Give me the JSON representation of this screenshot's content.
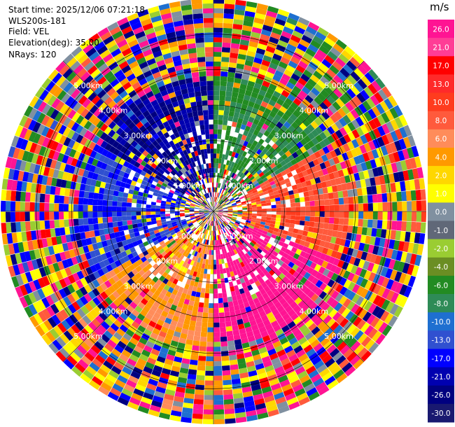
{
  "header": {
    "start_time": "Start time: 2025/12/06 07:21:18",
    "instrument": "WLS200s-181",
    "field": "Field: VEL",
    "elevation": "Elevation(deg): 35.00",
    "nrays": "NRays: 120"
  },
  "chart_data": {
    "type": "heatmap",
    "projection": "polar (PPI)",
    "field": "VEL",
    "units": "m/s",
    "elevation_deg": 35.0,
    "n_rays": 120,
    "max_range_km": 6.0,
    "range_rings_km": [
      1.0,
      2.0,
      3.0,
      4.0,
      5.0
    ],
    "range_ring_labels": [
      "1.00km",
      "2.00km",
      "3.00km",
      "4.00km",
      "5.00km"
    ],
    "colorbar": {
      "label": "m/s",
      "ticks": [
        "26.0",
        "21.0",
        "17.0",
        "13.0",
        "10.0",
        "8.0",
        "6.0",
        "4.0",
        "2.0",
        "1.0",
        "0.0",
        "-1.0",
        "-2.0",
        "-4.0",
        "-6.0",
        "-8.0",
        "-10.0",
        "-13.0",
        "-17.0",
        "-21.0",
        "-26.0",
        "-30.0"
      ],
      "bin_colors": [
        "#ff1493",
        "#ff3d96",
        "#ff0000",
        "#ff2a2a",
        "#ff3c1e",
        "#ff5a3c",
        "#ff8c5a",
        "#ff9900",
        "#ffd700",
        "#ffff00",
        "#8090a0",
        "#606878",
        "#9acd32",
        "#6b8e23",
        "#228b22",
        "#2e8b57",
        "#1e6fd0",
        "#3050d0",
        "#0000ff",
        "#0000b0",
        "#000080",
        "#191970"
      ]
    },
    "sector_pattern": [
      {
        "az_from": 0,
        "az_to": 60,
        "value": -8.0
      },
      {
        "az_from": 60,
        "az_to": 110,
        "value": 8.0
      },
      {
        "az_from": 110,
        "az_to": 180,
        "value": 26.0
      },
      {
        "az_from": 180,
        "az_to": 240,
        "value": 4.0
      },
      {
        "az_from": 240,
        "az_to": 300,
        "value": -17.0
      },
      {
        "az_from": 300,
        "az_to": 360,
        "value": -26.0
      }
    ]
  }
}
